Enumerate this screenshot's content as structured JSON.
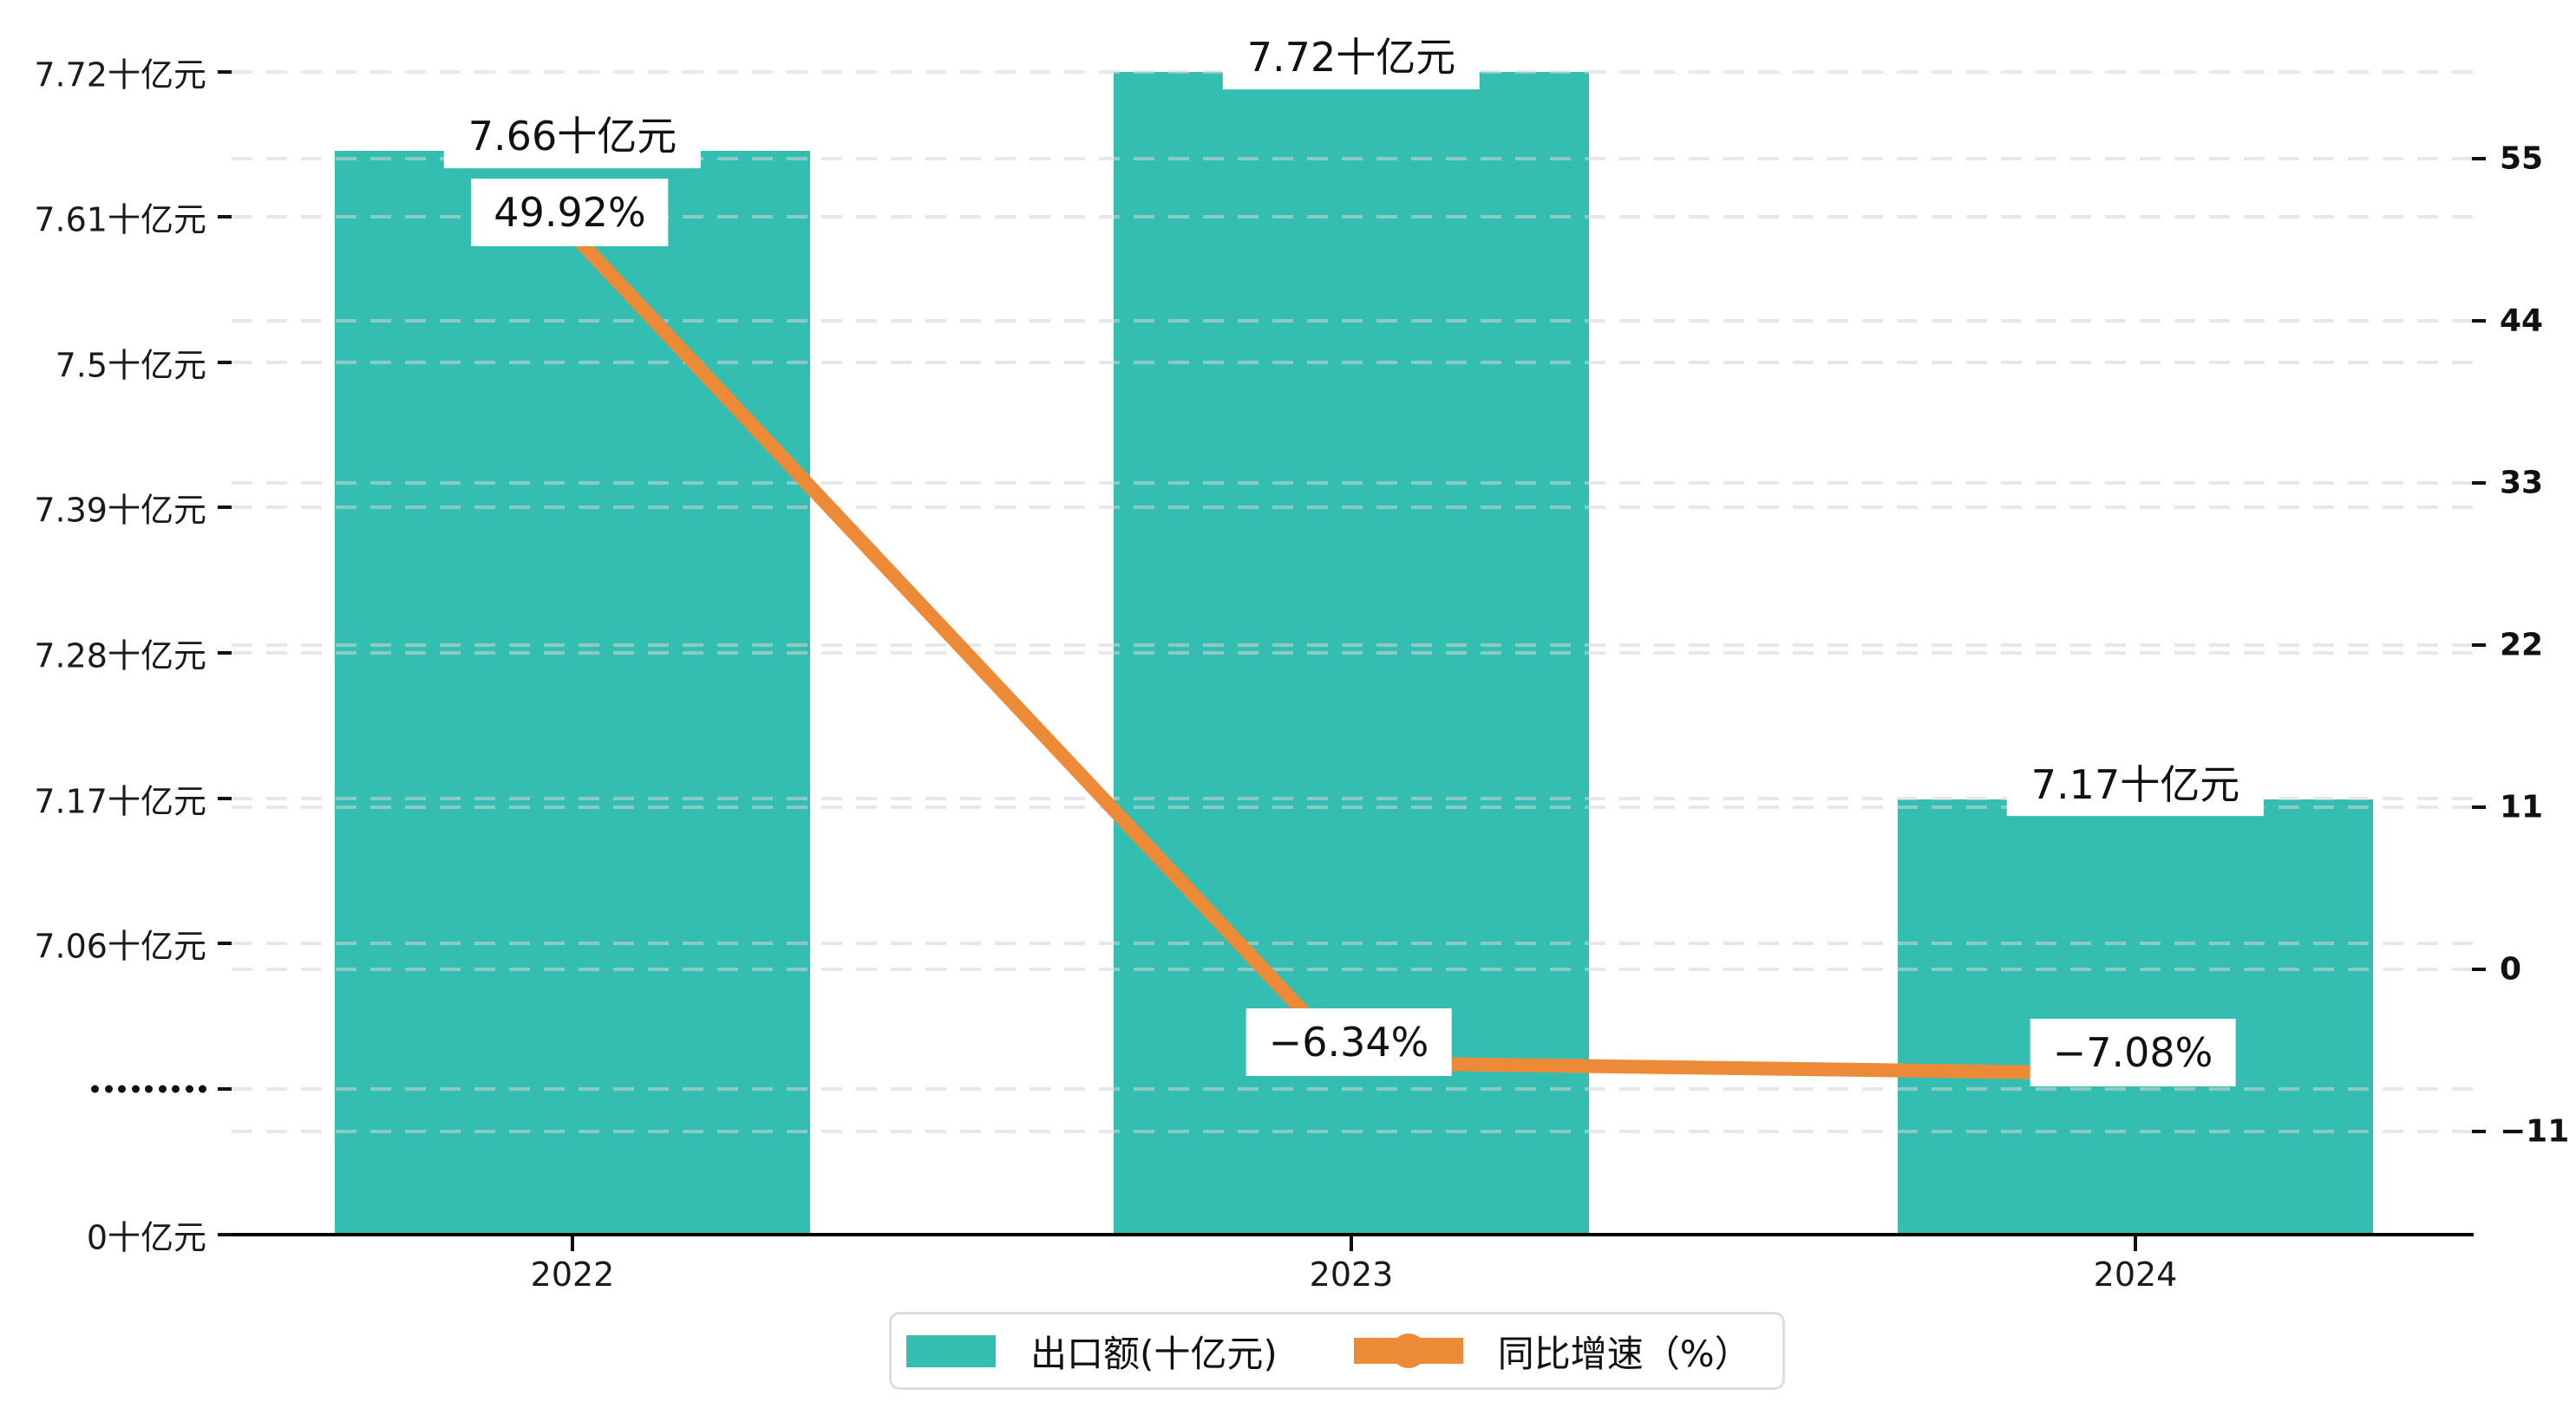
{
  "chart_data": {
    "type": "bar",
    "title": "",
    "categories": [
      "2022",
      "2023",
      "2024"
    ],
    "series": [
      {
        "name": "出口额(十亿元)",
        "type": "bar",
        "axis": "left",
        "unit": "十亿元",
        "values": [
          7.66,
          7.72,
          7.17
        ],
        "data_labels": [
          "7.66十亿元",
          "7.72十亿元",
          "7.17十亿元"
        ],
        "color": "#34BEB1"
      },
      {
        "name": "同比增速（%）",
        "type": "line",
        "axis": "right",
        "unit": "%",
        "values": [
          49.92,
          -6.34,
          -7.08
        ],
        "data_labels": [
          "49.92%",
          "−6.34%",
          "−7.08%"
        ],
        "color": "#ED8A38"
      }
    ],
    "left_axis": {
      "tick_labels": [
        "7.72十亿元",
        "7.61十亿元",
        "7.5十亿元",
        "7.39十亿元",
        "7.28十亿元",
        "7.17十亿元",
        "7.06十亿元",
        "·········",
        "0十亿元"
      ],
      "tick_values": [
        7.72,
        7.61,
        7.5,
        7.39,
        7.28,
        7.17,
        7.06,
        null,
        0
      ],
      "broken_axis": true
    },
    "right_axis": {
      "tick_labels": [
        "55",
        "44",
        "33",
        "22",
        "11",
        "0",
        "−11"
      ],
      "tick_values": [
        55,
        44,
        33,
        22,
        11,
        0,
        -11
      ]
    },
    "grid": true,
    "legend_position": "bottom-center"
  },
  "legend": {
    "bar_label": "出口额(十亿元)",
    "line_label": "同比增速（%）"
  },
  "colors": {
    "bar": "#34BEB1",
    "line": "#ED8A38",
    "axis": "#000000",
    "text": "#111111",
    "label_bg": "#ffffff",
    "legend_border": "#dedede"
  }
}
